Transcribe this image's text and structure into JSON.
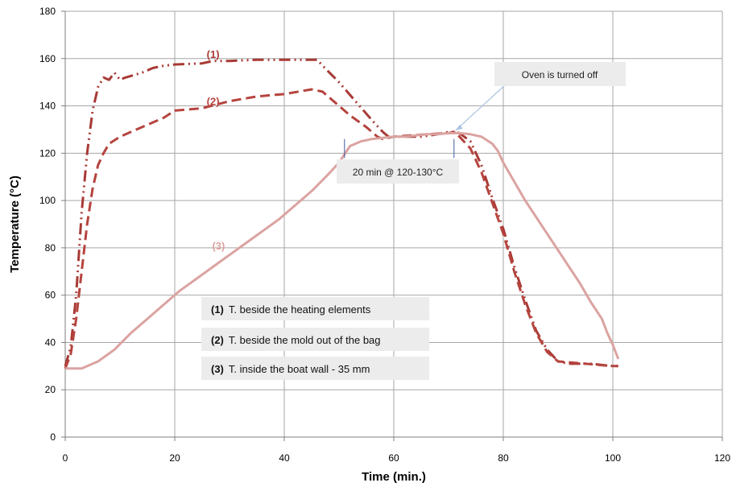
{
  "chart_data": {
    "type": "line",
    "xlabel": "Time (min.)",
    "ylabel": "Temperature (°C)",
    "xlim": [
      0,
      120
    ],
    "ylim": [
      0,
      180
    ],
    "x_ticks": [
      "0",
      "20",
      "40",
      "60",
      "80",
      "100",
      "120"
    ],
    "y_ticks": [
      "0",
      "20",
      "40",
      "60",
      "80",
      "100",
      "120",
      "140",
      "160",
      "180"
    ],
    "grid": "horizontal and vertical",
    "series": [
      {
        "tag": "(1)",
        "legend_label": "T. beside the heating elements",
        "color": "#a83a36",
        "dash": "dash-dot-dot",
        "points": [
          [
            0,
            30
          ],
          [
            1,
            38
          ],
          [
            2,
            60
          ],
          [
            3,
            95
          ],
          [
            4,
            120
          ],
          [
            5,
            138
          ],
          [
            6,
            148
          ],
          [
            7,
            152
          ],
          [
            8,
            151
          ],
          [
            9,
            154
          ],
          [
            10,
            151
          ],
          [
            11,
            152
          ],
          [
            14,
            154
          ],
          [
            16,
            156
          ],
          [
            18,
            157
          ],
          [
            20,
            157.5
          ],
          [
            25,
            158
          ],
          [
            27,
            159
          ],
          [
            30,
            159
          ],
          [
            35,
            159.5
          ],
          [
            40,
            159.5
          ],
          [
            44,
            159.5
          ],
          [
            46,
            159.5
          ],
          [
            47,
            157
          ],
          [
            50,
            150
          ],
          [
            53,
            142
          ],
          [
            56,
            134
          ],
          [
            58,
            129
          ],
          [
            59,
            127
          ],
          [
            62,
            127
          ],
          [
            65,
            127
          ],
          [
            68,
            128
          ],
          [
            70,
            129
          ],
          [
            71,
            129
          ],
          [
            72,
            128.5
          ],
          [
            74,
            125
          ],
          [
            76,
            115
          ],
          [
            78,
            101
          ],
          [
            80,
            88
          ],
          [
            82,
            72
          ],
          [
            84,
            58
          ],
          [
            86,
            45
          ],
          [
            88,
            37
          ],
          [
            90,
            32
          ],
          [
            92,
            31
          ],
          [
            94,
            31
          ],
          [
            96,
            31
          ],
          [
            98,
            30.5
          ],
          [
            100,
            30
          ],
          [
            101,
            30
          ]
        ]
      },
      {
        "tag": "(2)",
        "legend_label": "T. beside the mold out of the bag",
        "color": "#b5443e",
        "dash": "dash",
        "points": [
          [
            0,
            29
          ],
          [
            1,
            35
          ],
          [
            2,
            50
          ],
          [
            3,
            70
          ],
          [
            4,
            90
          ],
          [
            5,
            105
          ],
          [
            6,
            115
          ],
          [
            7,
            120
          ],
          [
            8,
            124
          ],
          [
            10,
            127
          ],
          [
            12,
            129
          ],
          [
            15,
            132
          ],
          [
            18,
            135
          ],
          [
            20,
            138
          ],
          [
            25,
            139
          ],
          [
            30,
            142
          ],
          [
            35,
            144
          ],
          [
            40,
            145
          ],
          [
            45,
            147
          ],
          [
            47,
            146
          ],
          [
            50,
            140
          ],
          [
            52,
            136
          ],
          [
            55,
            131
          ],
          [
            57,
            127
          ],
          [
            58,
            126
          ],
          [
            60,
            127
          ],
          [
            63,
            127.5
          ],
          [
            66,
            128
          ],
          [
            70,
            128.5
          ],
          [
            71,
            129
          ],
          [
            72,
            127
          ],
          [
            74,
            122
          ],
          [
            76,
            112
          ],
          [
            78,
            99
          ],
          [
            80,
            86
          ],
          [
            82,
            70
          ],
          [
            84,
            56
          ],
          [
            86,
            44
          ],
          [
            88,
            36
          ],
          [
            90,
            32
          ],
          [
            95,
            31
          ],
          [
            100,
            30
          ],
          [
            101,
            30
          ]
        ]
      },
      {
        "tag": "(3)",
        "legend_label": "T. inside the boat wall - 35 mm",
        "color": "#dba3a1",
        "dash": "solid",
        "points": [
          [
            0,
            29
          ],
          [
            3,
            29
          ],
          [
            6,
            32
          ],
          [
            9,
            37
          ],
          [
            12,
            44
          ],
          [
            15,
            50
          ],
          [
            18,
            56
          ],
          [
            21,
            62
          ],
          [
            24,
            67
          ],
          [
            27,
            72
          ],
          [
            30,
            77
          ],
          [
            33,
            82
          ],
          [
            36,
            87
          ],
          [
            39,
            92
          ],
          [
            42,
            98
          ],
          [
            45,
            104
          ],
          [
            48,
            111
          ],
          [
            50,
            116
          ],
          [
            52,
            123
          ],
          [
            54,
            125
          ],
          [
            56,
            126
          ],
          [
            58,
            126.5
          ],
          [
            60,
            127
          ],
          [
            62,
            127
          ],
          [
            64,
            127.5
          ],
          [
            66,
            128
          ],
          [
            68,
            128
          ],
          [
            70,
            128.5
          ],
          [
            72,
            128.5
          ],
          [
            74,
            128
          ],
          [
            76,
            127
          ],
          [
            78,
            124
          ],
          [
            79,
            121
          ],
          [
            80,
            116
          ],
          [
            82,
            108
          ],
          [
            84,
            100
          ],
          [
            86,
            93
          ],
          [
            88,
            86
          ],
          [
            90,
            79
          ],
          [
            92,
            72
          ],
          [
            94,
            65
          ],
          [
            96,
            57
          ],
          [
            98,
            50
          ],
          [
            99,
            44
          ],
          [
            100,
            39
          ],
          [
            101,
            33
          ]
        ]
      }
    ],
    "annotations": [
      {
        "text": "Oven is turned off"
      },
      {
        "text": "20 min @ 120-130°C"
      }
    ]
  },
  "colors": {
    "grid": "#a6a6a6",
    "axis": "#7f7f7f",
    "note_bg": "#ececec",
    "legend_bg": "#ececec",
    "arrow": "#a9c3e3",
    "marker": "#3b5c9c"
  }
}
